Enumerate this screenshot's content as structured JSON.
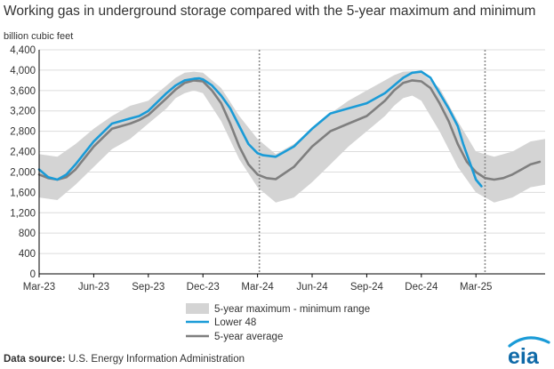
{
  "chart_data": {
    "type": "line",
    "title": "Working gas in underground storage compared with the 5-year maximum and minimum",
    "ylabel": "billion cubic feet",
    "ylim": [
      0,
      4400
    ],
    "yticks": [
      "0",
      "400",
      "800",
      "1,200",
      "1,600",
      "2,000",
      "2,400",
      "2,800",
      "3,200",
      "3,600",
      "4,000",
      "4,400"
    ],
    "xlim": [
      0,
      27.8
    ],
    "xticks": [
      {
        "label": "Mar-23",
        "x": 0
      },
      {
        "label": "Jun-23",
        "x": 3
      },
      {
        "label": "Sep-23",
        "x": 6
      },
      {
        "label": "Dec-23",
        "x": 9
      },
      {
        "label": "Mar-24",
        "x": 12
      },
      {
        "label": "Jun-24",
        "x": 15
      },
      {
        "label": "Sep-24",
        "x": 18
      },
      {
        "label": "Dec-24",
        "x": 21
      },
      {
        "label": "Mar-25",
        "x": 24
      }
    ],
    "vlines": [
      12.1,
      24.5
    ],
    "grid": true,
    "legend_position": "bottom-center",
    "series": [
      {
        "name": "5-year maximum - minimum range",
        "kind": "band",
        "color": "#d4d4d4",
        "x": [
          0,
          1,
          2,
          3,
          4,
          5,
          6,
          7,
          7.5,
          8,
          8.5,
          9,
          10,
          11,
          12,
          13,
          14,
          15,
          16,
          17,
          18,
          19,
          19.5,
          20,
          20.5,
          21,
          22,
          23,
          24,
          25,
          26,
          27,
          27.8
        ],
        "upper": [
          2350,
          2300,
          2550,
          2850,
          3100,
          3300,
          3400,
          3700,
          3850,
          3950,
          3970,
          3950,
          3650,
          3100,
          2650,
          2350,
          2550,
          2850,
          3150,
          3400,
          3600,
          3800,
          3900,
          3970,
          3980,
          3950,
          3650,
          3000,
          2400,
          2300,
          2400,
          2600,
          2650
        ],
        "lower": [
          1500,
          1450,
          1750,
          2100,
          2450,
          2650,
          2950,
          3250,
          3450,
          3550,
          3600,
          3550,
          3000,
          2250,
          1700,
          1400,
          1500,
          1800,
          2150,
          2500,
          2800,
          3100,
          3300,
          3450,
          3500,
          3400,
          2800,
          2100,
          1600,
          1400,
          1500,
          1700,
          1750
        ]
      },
      {
        "name": "Lower 48",
        "kind": "line",
        "color": "#1a9bd7",
        "x": [
          0,
          0.5,
          1,
          1.5,
          2,
          3,
          4,
          5,
          5.5,
          6,
          7,
          7.5,
          8,
          8.5,
          8.8,
          9,
          9.5,
          10,
          10.5,
          11,
          11.5,
          12,
          12.3,
          13,
          14,
          15,
          16,
          17,
          18,
          19,
          19.5,
          20,
          20.5,
          21,
          21.5,
          22,
          22.5,
          23,
          23.3,
          23.6,
          24,
          24.3
        ],
        "y": [
          2050,
          1900,
          1850,
          1950,
          2150,
          2600,
          2950,
          3050,
          3100,
          3200,
          3550,
          3700,
          3800,
          3830,
          3840,
          3820,
          3700,
          3500,
          3250,
          2900,
          2550,
          2370,
          2330,
          2300,
          2500,
          2850,
          3150,
          3250,
          3350,
          3550,
          3700,
          3850,
          3950,
          3970,
          3850,
          3550,
          3250,
          2900,
          2550,
          2250,
          1850,
          1720
        ]
      },
      {
        "name": "5-year average",
        "kind": "line",
        "color": "#7f7f7f",
        "x": [
          0,
          0.5,
          1,
          1.5,
          2,
          3,
          4,
          5,
          5.5,
          6,
          7,
          7.5,
          8,
          8.5,
          9,
          9.5,
          10,
          10.5,
          11,
          11.5,
          12,
          12.5,
          13,
          14,
          15,
          16,
          17,
          18,
          19,
          19.5,
          20,
          20.5,
          21,
          21.5,
          22,
          22.5,
          23,
          23.5,
          24,
          24.5,
          25,
          25.5,
          26,
          26.5,
          27,
          27.5
        ],
        "y": [
          1950,
          1880,
          1850,
          1900,
          2050,
          2500,
          2850,
          2950,
          3020,
          3120,
          3450,
          3620,
          3750,
          3800,
          3780,
          3600,
          3350,
          2950,
          2500,
          2150,
          1950,
          1880,
          1860,
          2100,
          2500,
          2800,
          2950,
          3100,
          3400,
          3600,
          3750,
          3800,
          3780,
          3650,
          3350,
          3000,
          2550,
          2200,
          2000,
          1880,
          1850,
          1880,
          1950,
          2050,
          2150,
          2200
        ]
      }
    ]
  },
  "footer": {
    "source_label": "Data source:",
    "source_text": " U.S. Energy Information Administration"
  },
  "logo": {
    "text": "eia",
    "color": "#0f6aa8",
    "arc_color": "#1a9bd7"
  }
}
